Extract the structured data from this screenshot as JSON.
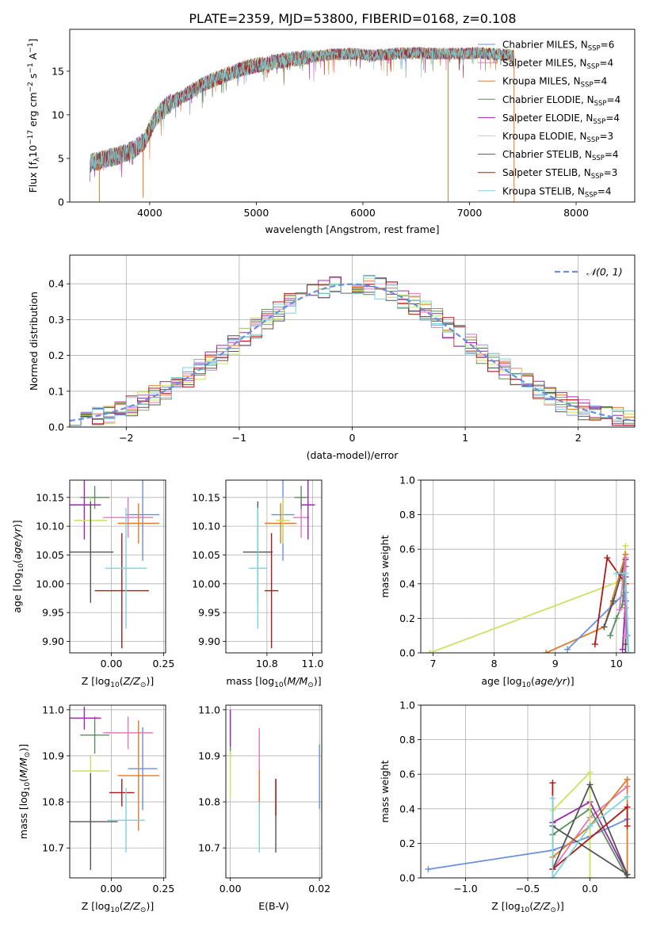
{
  "figure_title": "PLATE=2359, MJD=53800, FIBERID=0168, z=0.108",
  "colors": {
    "Chabrier MILES": "#6a8fdc",
    "Salpeter MILES": "#e377c2",
    "Kroupa MILES": "#e07b2b",
    "Chabrier ELODIE": "#5a8f5a",
    "Salpeter ELODIE": "#9c27b0",
    "Kroupa ELODIE": "#cde060",
    "Chabrier STELIB": "#555555",
    "Salpeter STELIB": "#b01818",
    "Kroupa STELIB": "#7fd3d8"
  },
  "legend": [
    {
      "label": "Chabrier MILES, N",
      "sub": "SSP",
      "tail": "=6",
      "color_key": "Chabrier MILES"
    },
    {
      "label": "Salpeter MILES, N",
      "sub": "SSP",
      "tail": "=4",
      "color_key": "Salpeter MILES"
    },
    {
      "label": "Kroupa MILES, N",
      "sub": "SSP",
      "tail": "=4",
      "color_key": "Kroupa MILES"
    },
    {
      "label": "Chabrier ELODIE, N",
      "sub": "SSP",
      "tail": "=4",
      "color_key": "Chabrier ELODIE"
    },
    {
      "label": "Salpeter ELODIE, N",
      "sub": "SSP",
      "tail": "=4",
      "color_key": "Salpeter ELODIE"
    },
    {
      "label": "Kroupa ELODIE, N",
      "sub": "SSP",
      "tail": "=3",
      "color_key": "Kroupa ELODIE"
    },
    {
      "label": "Chabrier STELIB, N",
      "sub": "SSP",
      "tail": "=4",
      "color_key": "Chabrier STELIB"
    },
    {
      "label": "Salpeter STELIB, N",
      "sub": "SSP",
      "tail": "=3",
      "color_key": "Salpeter STELIB"
    },
    {
      "label": "Kroupa STELIB, N",
      "sub": "SSP",
      "tail": "=4",
      "color_key": "Kroupa STELIB"
    }
  ],
  "chart_data": [
    {
      "id": "spectrum",
      "type": "line",
      "title": "PLATE=2359, MJD=53800, FIBERID=0168, z=0.108",
      "xlabel": "wavelength [Angstrom, rest frame]",
      "ylabel": "Flux [f_λ 10^-17 erg cm^-2 s^-1 A^-1]",
      "xlim": [
        3250,
        8550
      ],
      "ylim": [
        0,
        19.8
      ],
      "xticks": [
        4000,
        5000,
        6000,
        7000,
        8000
      ],
      "yticks": [
        0,
        5,
        10,
        15
      ],
      "grid": false,
      "legend_position": "right",
      "continuum": {
        "x": [
          3440,
          3550,
          3700,
          3850,
          3950,
          4050,
          4150,
          4300,
          4500,
          4700,
          4900,
          5100,
          5300,
          5500,
          5700,
          5900,
          6100,
          6300,
          6500,
          6700,
          6900,
          7100,
          7300,
          7420
        ],
        "y": [
          4.5,
          4.8,
          5.3,
          6.0,
          7.0,
          9.5,
          11.0,
          12.0,
          13.5,
          14.5,
          15.4,
          15.9,
          16.3,
          16.6,
          16.9,
          17.0,
          16.8,
          17.0,
          17.1,
          17.0,
          17.0,
          17.1,
          16.9,
          16.8
        ]
      },
      "glitches": [
        {
          "x": 3528,
          "y_min": 0
        },
        {
          "x": 3938,
          "y_min": 0.5
        },
        {
          "x": 6800,
          "y_min": 0
        },
        {
          "x": 7418,
          "y_min": 0
        }
      ]
    },
    {
      "id": "residuals",
      "type": "step-histogram",
      "xlabel": "(data-model)/error",
      "ylabel": "Normed distribution",
      "xlim": [
        -2.5,
        2.5
      ],
      "ylim": [
        0,
        0.48
      ],
      "xticks": [
        -2,
        -1,
        0,
        1,
        2
      ],
      "yticks": [
        0.0,
        0.1,
        0.2,
        0.3,
        0.4
      ],
      "grid": true,
      "bin_width": 0.1,
      "reference_curve": {
        "label": "𝒩(0, 1)",
        "mean": 0,
        "sigma": 1,
        "color": "#6a8fdc",
        "dashed": true
      }
    },
    {
      "id": "age-vs-Z",
      "type": "errorbar",
      "xlabel": "Z [log10(Z/Z⊙)]",
      "ylabel": "age [log10(age/yr)]",
      "xlim": [
        -0.2,
        0.26
      ],
      "ylim": [
        9.88,
        10.18
      ],
      "xticks": [
        0.0,
        0.25
      ],
      "yticks": [
        9.9,
        9.95,
        10.0,
        10.05,
        10.1,
        10.15
      ],
      "grid": true,
      "points": [
        {
          "model": "Chabrier MILES",
          "x": 0.15,
          "y": 10.12,
          "xerr": 0.08,
          "yerr": 0.08
        },
        {
          "model": "Salpeter MILES",
          "x": 0.08,
          "y": 10.115,
          "xerr": 0.12,
          "yerr": 0.035
        },
        {
          "model": "Kroupa MILES",
          "x": 0.13,
          "y": 10.105,
          "xerr": 0.1,
          "yerr": 0.035
        },
        {
          "model": "Chabrier ELODIE",
          "x": -0.08,
          "y": 10.15,
          "xerr": 0.07,
          "yerr": 0.02
        },
        {
          "model": "Salpeter ELODIE",
          "x": -0.13,
          "y": 10.137,
          "xerr": 0.08,
          "yerr": 0.06
        },
        {
          "model": "Kroupa ELODIE",
          "x": -0.1,
          "y": 10.11,
          "xerr": 0.08,
          "yerr": 0.04
        },
        {
          "model": "Chabrier STELIB",
          "x": -0.1,
          "y": 10.055,
          "xerr": 0.11,
          "yerr": 0.088
        },
        {
          "model": "Salpeter STELIB",
          "x": 0.05,
          "y": 9.988,
          "xerr": 0.13,
          "yerr": 0.1
        },
        {
          "model": "Kroupa STELIB",
          "x": 0.07,
          "y": 10.027,
          "xerr": 0.1,
          "yerr": 0.105
        }
      ]
    },
    {
      "id": "age-vs-mass",
      "type": "errorbar",
      "xlabel": "mass [log10(M/M⊙)]",
      "ylabel": "",
      "xlim": [
        10.62,
        11.04
      ],
      "ylim": [
        9.88,
        10.18
      ],
      "xticks": [
        10.8,
        11.0
      ],
      "yticks": [
        9.9,
        9.95,
        10.0,
        10.05,
        10.1,
        10.15
      ],
      "grid": true,
      "points": [
        {
          "model": "Chabrier MILES",
          "x": 10.87,
          "y": 10.12,
          "xerr": 0.05,
          "yerr": 0.08
        },
        {
          "model": "Salpeter MILES",
          "x": 10.95,
          "y": 10.115,
          "xerr": 0.035,
          "yerr": 0.035
        },
        {
          "model": "Kroupa MILES",
          "x": 10.86,
          "y": 10.105,
          "xerr": 0.07,
          "yerr": 0.035
        },
        {
          "model": "Chabrier ELODIE",
          "x": 10.95,
          "y": 10.15,
          "xerr": 0.03,
          "yerr": 0.02
        },
        {
          "model": "Salpeter ELODIE",
          "x": 10.98,
          "y": 10.137,
          "xerr": 0.03,
          "yerr": 0.06
        },
        {
          "model": "Kroupa ELODIE",
          "x": 10.87,
          "y": 10.11,
          "xerr": 0.03,
          "yerr": 0.04
        },
        {
          "model": "Chabrier STELIB",
          "x": 10.76,
          "y": 10.055,
          "xerr": 0.065,
          "yerr": 0.088
        },
        {
          "model": "Salpeter STELIB",
          "x": 10.82,
          "y": 9.988,
          "xerr": 0.03,
          "yerr": 0.1
        },
        {
          "model": "Kroupa STELIB",
          "x": 10.76,
          "y": 10.027,
          "xerr": 0.04,
          "yerr": 0.105
        }
      ]
    },
    {
      "id": "mass-weight-vs-age",
      "type": "line",
      "xlabel": "age [log10(age/yr)]",
      "ylabel": "mass weight",
      "xlim": [
        6.8,
        10.3
      ],
      "ylim": [
        0,
        1.0
      ],
      "xticks": [
        7,
        8,
        9,
        10
      ],
      "yticks": [
        0.0,
        0.2,
        0.4,
        0.6,
        0.8,
        1.0
      ],
      "grid": true,
      "series": [
        {
          "model": "Kroupa ELODIE",
          "points": [
            [
              6.95,
              0.0
            ],
            [
              10.1,
              0.42
            ],
            [
              10.15,
              0.62
            ]
          ]
        },
        {
          "model": "Kroupa MILES",
          "points": [
            [
              8.85,
              0.0
            ],
            [
              9.8,
              0.15
            ],
            [
              10.15,
              0.57
            ],
            [
              10.15,
              0.26
            ]
          ]
        },
        {
          "model": "Chabrier MILES",
          "points": [
            [
              9.2,
              0.02
            ],
            [
              10.15,
              0.35
            ],
            [
              10.15,
              0.2
            ],
            [
              10.18,
              0.1
            ],
            [
              10.2,
              0.0
            ],
            [
              10.1,
              0.46
            ]
          ]
        },
        {
          "model": "Salpeter STELIB",
          "points": [
            [
              9.65,
              0.05
            ],
            [
              9.85,
              0.55
            ],
            [
              10.15,
              0.4
            ],
            [
              10.15,
              0.05
            ]
          ]
        },
        {
          "model": "Chabrier STELIB",
          "points": [
            [
              9.8,
              0.15
            ],
            [
              9.95,
              0.3
            ],
            [
              10.15,
              0.54
            ],
            [
              10.15,
              0.0
            ]
          ]
        },
        {
          "model": "Chabrier ELODIE",
          "points": [
            [
              9.9,
              0.1
            ],
            [
              10.0,
              0.2
            ],
            [
              10.1,
              0.28
            ],
            [
              10.15,
              0.5
            ]
          ]
        },
        {
          "model": "Salpeter ELODIE",
          "points": [
            [
              10.1,
              0.02
            ],
            [
              10.15,
              0.3
            ],
            [
              10.15,
              0.44
            ]
          ]
        },
        {
          "model": "Salpeter MILES",
          "points": [
            [
              10.05,
              0.25
            ],
            [
              10.15,
              0.55
            ],
            [
              10.15,
              0.1
            ]
          ]
        },
        {
          "model": "Kroupa STELIB",
          "points": [
            [
              10.0,
              0.46
            ],
            [
              10.15,
              0.46
            ],
            [
              10.2,
              0.0
            ]
          ]
        }
      ]
    },
    {
      "id": "mass-vs-Z",
      "type": "errorbar",
      "xlabel": "Z [log10(Z/Z⊙)]",
      "ylabel": "mass [log10(M/M⊙)]",
      "xlim": [
        -0.2,
        0.26
      ],
      "ylim": [
        10.635,
        11.01
      ],
      "xticks": [
        0.0,
        0.25
      ],
      "yticks": [
        10.7,
        10.8,
        10.9,
        11.0
      ],
      "grid": true,
      "points": [
        {
          "model": "Chabrier MILES",
          "x": 0.15,
          "y": 10.872,
          "xerr": 0.07,
          "yerr": 0.09
        },
        {
          "model": "Salpeter MILES",
          "x": 0.08,
          "y": 10.95,
          "xerr": 0.12,
          "yerr": 0.035
        },
        {
          "model": "Kroupa MILES",
          "x": 0.13,
          "y": 10.857,
          "xerr": 0.1,
          "yerr": 0.12
        },
        {
          "model": "Chabrier ELODIE",
          "x": -0.08,
          "y": 10.945,
          "xerr": 0.07,
          "yerr": 0.04
        },
        {
          "model": "Salpeter ELODIE",
          "x": -0.13,
          "y": 10.982,
          "xerr": 0.08,
          "yerr": 0.025
        },
        {
          "model": "Kroupa ELODIE",
          "x": -0.1,
          "y": 10.867,
          "xerr": 0.09,
          "yerr": 0.035
        },
        {
          "model": "Chabrier STELIB",
          "x": -0.1,
          "y": 10.757,
          "xerr": 0.13,
          "yerr": 0.105
        },
        {
          "model": "Salpeter STELIB",
          "x": 0.05,
          "y": 10.82,
          "xerr": 0.06,
          "yerr": 0.03
        },
        {
          "model": "Kroupa STELIB",
          "x": 0.07,
          "y": 10.76,
          "xerr": 0.09,
          "yerr": 0.07
        }
      ]
    },
    {
      "id": "mass-vs-EBV",
      "type": "errorbar",
      "xlabel": "E(B-V)",
      "ylabel": "",
      "xlim": [
        -0.001,
        0.0205
      ],
      "ylim": [
        10.635,
        11.01
      ],
      "xticks": [
        0.0,
        0.02
      ],
      "yticks": [
        10.7,
        10.8,
        10.9,
        11.0
      ],
      "grid": true,
      "points": [
        {
          "model": "Chabrier MILES",
          "x": 0.02,
          "y": 10.855,
          "xerr": 0,
          "yerr": 0.07
        },
        {
          "model": "Salpeter MILES",
          "x": 0.0065,
          "y": 10.87,
          "xerr": 0,
          "yerr": 0.09
        },
        {
          "model": "Kroupa MILES",
          "x": 0.0065,
          "y": 10.83,
          "xerr": 0,
          "yerr": 0.04
        },
        {
          "model": "Chabrier ELODIE",
          "x": 0.0,
          "y": 10.95,
          "xerr": 0,
          "yerr": 0.05
        },
        {
          "model": "Salpeter ELODIE",
          "x": 0.0,
          "y": 10.96,
          "xerr": 0,
          "yerr": 0.04
        },
        {
          "model": "Kroupa ELODIE",
          "x": 0.0,
          "y": 10.86,
          "xerr": 0,
          "yerr": 0.05
        },
        {
          "model": "Chabrier STELIB",
          "x": 0.0102,
          "y": 10.77,
          "xerr": 0,
          "yerr": 0.08
        },
        {
          "model": "Salpeter STELIB",
          "x": 0.0102,
          "y": 10.81,
          "xerr": 0,
          "yerr": 0.04
        },
        {
          "model": "Kroupa STELIB",
          "x": 0.0065,
          "y": 10.745,
          "xerr": 0,
          "yerr": 0.055
        }
      ]
    },
    {
      "id": "mass-weight-vs-Z",
      "type": "line",
      "xlabel": "Z [log10(Z/Z⊙)]",
      "ylabel": "mass weight",
      "xlim": [
        -1.36,
        0.36
      ],
      "ylim": [
        0,
        1.0
      ],
      "xticks": [
        -1.0,
        -0.5,
        0.0
      ],
      "yticks": [
        0.0,
        0.2,
        0.4,
        0.6,
        0.8,
        1.0
      ],
      "grid": true,
      "series": [
        {
          "model": "Chabrier MILES",
          "points": [
            [
              -1.3,
              0.05
            ],
            [
              -0.3,
              0.16
            ],
            [
              0.0,
              0.24
            ],
            [
              0.3,
              0.34
            ]
          ]
        },
        {
          "model": "Salpeter MILES",
          "points": [
            [
              -0.3,
              0.05
            ],
            [
              0.0,
              0.35
            ],
            [
              0.3,
              0.53
            ]
          ]
        },
        {
          "model": "Kroupa MILES",
          "points": [
            [
              -0.3,
              0.12
            ],
            [
              0.0,
              0.3
            ],
            [
              0.3,
              0.57
            ],
            [
              0.3,
              0.0
            ]
          ]
        },
        {
          "model": "Chabrier ELODIE",
          "points": [
            [
              -0.3,
              0.25
            ],
            [
              0.0,
              0.4
            ],
            [
              0.3,
              0.0
            ]
          ]
        },
        {
          "model": "Salpeter ELODIE",
          "points": [
            [
              -0.3,
              0.32
            ],
            [
              0.0,
              0.44
            ],
            [
              0.3,
              0.02
            ]
          ]
        },
        {
          "model": "Kroupa ELODIE",
          "points": [
            [
              -0.3,
              0.39
            ],
            [
              0.0,
              0.61
            ],
            [
              0.0,
              0.0
            ]
          ]
        },
        {
          "model": "Chabrier STELIB",
          "points": [
            [
              -0.3,
              0.05
            ],
            [
              0.0,
              0.54
            ],
            [
              0.3,
              0.02
            ],
            [
              -0.3,
              0.3
            ]
          ]
        },
        {
          "model": "Salpeter STELIB",
          "points": [
            [
              -0.3,
              0.55
            ],
            [
              -0.3,
              0.05
            ],
            [
              0.3,
              0.41
            ],
            [
              0.3,
              0.3
            ]
          ]
        },
        {
          "model": "Kroupa STELIB",
          "points": [
            [
              -0.3,
              0.46
            ],
            [
              -0.3,
              0.0
            ],
            [
              0.0,
              0.3
            ],
            [
              0.3,
              0.47
            ]
          ]
        }
      ]
    }
  ]
}
